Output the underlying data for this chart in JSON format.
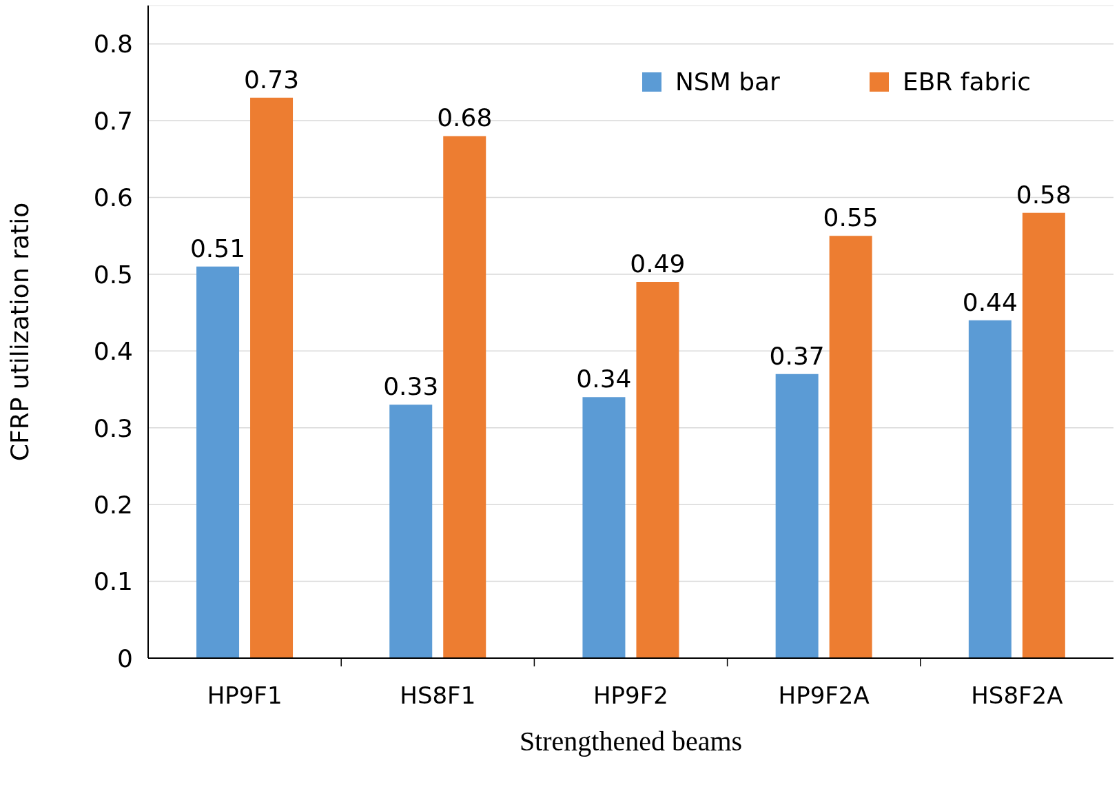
{
  "chart_data": {
    "type": "bar",
    "xlabel": "Strengthened beams",
    "ylabel": "CFRP utilization ratio",
    "categories": [
      "HP9F1",
      "HS8F1",
      "HP9F2",
      "HP9F2A",
      "HS8F2A"
    ],
    "series": [
      {
        "name": "NSM bar",
        "color": "#5b9bd5",
        "values": [
          0.51,
          0.33,
          0.34,
          0.37,
          0.44
        ]
      },
      {
        "name": "EBR fabric",
        "color": "#ed7d31",
        "values": [
          0.73,
          0.68,
          0.49,
          0.55,
          0.58
        ]
      }
    ],
    "ylim": [
      0,
      0.85
    ],
    "yticks": [
      0,
      0.1,
      0.2,
      0.3,
      0.4,
      0.5,
      0.6,
      0.7,
      0.8
    ],
    "grid": "y",
    "legend": "top right",
    "data_labels": true
  }
}
